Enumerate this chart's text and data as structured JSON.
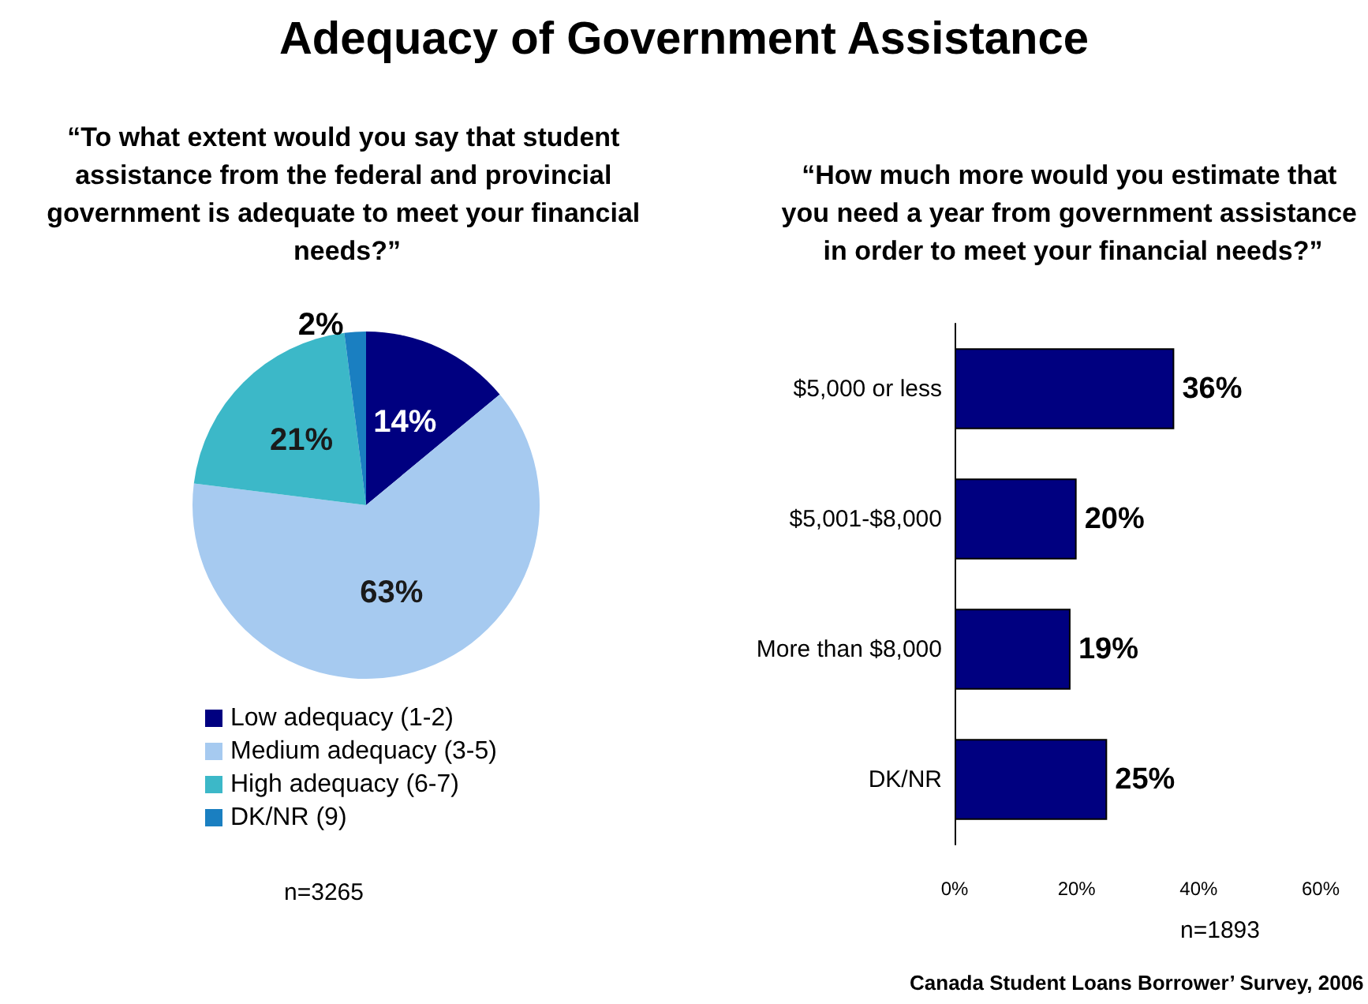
{
  "chart_data": [
    {
      "type": "other",
      "title": "Adequacy of Government Assistance"
    },
    {
      "type": "pie",
      "title": "“To what extent would you say that student assistance from the federal and provincial government is adequate to meet your financial needs?”",
      "categories": [
        "Low adequacy (1-2)",
        "Medium adequacy (3-5)",
        "High adequacy (6-7)",
        "DK/NR (9)"
      ],
      "values": [
        14,
        63,
        21,
        2
      ],
      "colors": [
        "#000080",
        "#a6caf0",
        "#3cb8c8",
        "#1a7fc1"
      ],
      "value_labels": [
        "14%",
        "63%",
        "21%",
        "2%"
      ],
      "legend": "bottom",
      "annotations": [
        "n=3265"
      ]
    },
    {
      "type": "bar",
      "orientation": "horizontal",
      "title": "“How much more would you estimate that you need a year from government assistance in order to meet your financial needs?”",
      "categories": [
        "$5,000 or less",
        "$5,001-$8,000",
        "More than $8,000",
        "DK/NR"
      ],
      "values": [
        36,
        20,
        19,
        25
      ],
      "color": "#000080",
      "value_labels": [
        "36%",
        "20%",
        "19%",
        "25%"
      ],
      "xlim": [
        0,
        60
      ],
      "xticks": [
        {
          "value": 0,
          "label": "0%"
        },
        {
          "value": 20,
          "label": "20%"
        },
        {
          "value": 40,
          "label": "40%"
        },
        {
          "value": 60,
          "label": "60%"
        }
      ],
      "grid": false,
      "legend": false,
      "annotations": [
        "n=1893",
        "Canada Student Loans Borrower’ Survey, 2006"
      ]
    }
  ]
}
